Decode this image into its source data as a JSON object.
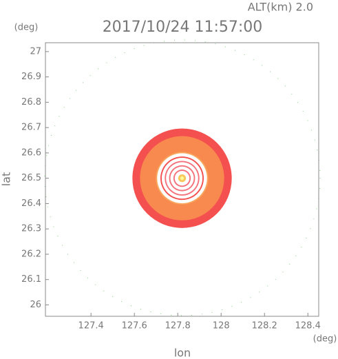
{
  "chart_data": {
    "type": "rings",
    "title": "2017/10/24 11:57:00",
    "altitude_label": "ALT(km) 2.0",
    "x_label": "lon",
    "y_label": "lat",
    "x_unit": "(deg)",
    "y_unit": "(deg)",
    "xlim": [
      127.19,
      128.45
    ],
    "ylim": [
      25.955,
      27.035
    ],
    "xticks": [
      127.4,
      127.6,
      127.8,
      128.0,
      128.2,
      128.4
    ],
    "yticks": [
      26.0,
      26.1,
      26.2,
      26.3,
      26.4,
      26.5,
      26.6,
      26.7,
      26.8,
      26.9,
      27.0
    ],
    "center": [
      127.82,
      26.5
    ],
    "rings": [
      {
        "radius": 0.229,
        "color": "#f4504f"
      },
      {
        "radius": 0.194,
        "color": "#f98a4f"
      },
      {
        "radius": 0.121,
        "color": "#f9a65e"
      },
      {
        "radius": 0.115,
        "color": "#ffffff"
      },
      {
        "radius": 0.1,
        "color": "#f4504f"
      },
      {
        "radius": 0.094,
        "color": "#ffffff"
      },
      {
        "radius": 0.08,
        "color": "#f4707a"
      },
      {
        "radius": 0.074,
        "color": "#ffffff"
      },
      {
        "radius": 0.06,
        "color": "#f4707a"
      },
      {
        "radius": 0.054,
        "color": "#ffffff"
      },
      {
        "radius": 0.04,
        "color": "#f4707a"
      },
      {
        "radius": 0.034,
        "color": "#ffffff"
      },
      {
        "radius": 0.018,
        "color": "#f9c85e"
      },
      {
        "radius": 0.008,
        "color": "#ffff99"
      }
    ]
  }
}
